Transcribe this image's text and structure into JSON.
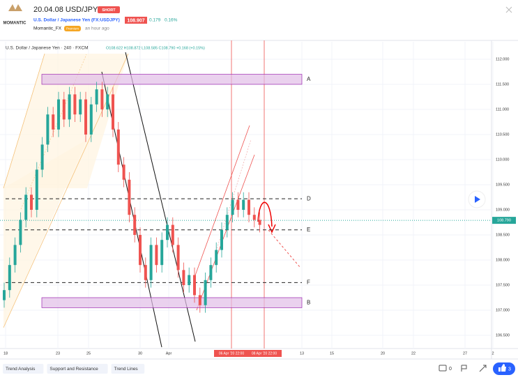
{
  "header": {
    "logo": "MOMANTIC",
    "title": "20.04.08 USD/JPY",
    "badge": "SHORT",
    "symbol": "U.S. Dollar / Japanese Yen (FX:USDJPY)",
    "price": "108.907",
    "change": "0.179",
    "change_pct": "0.16%",
    "author": "Momantic_FX",
    "author_badge": "Premium",
    "time": "an hour ago"
  },
  "legend": {
    "name": "U.S. Dollar / Japanese Yen · 240 · FXCM",
    "ohlc": "O108.622 H108.872 L108.585 C108.790 +0.168 (+0.15%)"
  },
  "chart_data": {
    "type": "candlestick",
    "ylim": [
      106.236,
      112.347
    ],
    "yticks": [
      {
        "value": 112,
        "label": "112.000"
      },
      {
        "value": 111.5,
        "label": "111.500"
      },
      {
        "value": 111,
        "label": "111.000"
      },
      {
        "value": 110.5,
        "label": "110.500"
      },
      {
        "value": 110,
        "label": "110.000"
      },
      {
        "value": 109.5,
        "label": "109.500"
      },
      {
        "value": 109,
        "label": "109.000"
      },
      {
        "value": 108.5,
        "label": "108.500"
      },
      {
        "value": 108,
        "label": "108.000"
      },
      {
        "value": 107.5,
        "label": "107.500"
      },
      {
        "value": 107,
        "label": "107.000"
      },
      {
        "value": 106.5,
        "label": "106.500"
      }
    ],
    "x_labels": [
      "18",
      "23",
      "25",
      "30",
      "Apr",
      "13",
      "15",
      "20",
      "22",
      "27",
      "2"
    ],
    "date_markers": [
      "06 Apr '20  22:00",
      "08 Apr '20  22:00"
    ],
    "last_price": {
      "value": 108.79,
      "label": "108.790"
    },
    "open": [
      107.2,
      107.4,
      107.9,
      108.3,
      108.8,
      109.3,
      109.0,
      109.8,
      110.3,
      110.9,
      110.6,
      111.2,
      110.8,
      111.3,
      110.9,
      111.2,
      110.5,
      111.1,
      111.4,
      111.0,
      111.3,
      110.6,
      109.9,
      109.6,
      108.9,
      108.5,
      107.9,
      107.6,
      108.3,
      107.9,
      108.4,
      108.7,
      108.3,
      107.8,
      107.5,
      107.7,
      107.3,
      107.1,
      107.6,
      107.9,
      108.2,
      108.6,
      108.9,
      109.2,
      109.0,
      109.2,
      108.9,
      108.8
    ],
    "high": [
      107.55,
      108.05,
      108.45,
      108.95,
      109.45,
      109.45,
      109.95,
      110.45,
      111.05,
      111.05,
      111.35,
      111.35,
      111.45,
      111.45,
      111.35,
      111.35,
      111.25,
      111.55,
      111.55,
      111.45,
      111.45,
      110.75,
      110.05,
      109.75,
      109.05,
      108.65,
      108.05,
      108.45,
      108.45,
      108.55,
      108.85,
      108.85,
      108.45,
      107.95,
      107.85,
      107.85,
      107.45,
      107.75,
      108.05,
      108.35,
      108.75,
      109.05,
      109.35,
      109.35,
      109.35,
      109.35,
      109.05,
      108.95
    ],
    "low": [
      107.05,
      107.25,
      107.75,
      108.15,
      108.65,
      108.85,
      108.85,
      109.65,
      110.15,
      110.45,
      110.45,
      110.65,
      110.65,
      110.75,
      110.75,
      110.35,
      110.35,
      110.95,
      110.85,
      110.85,
      110.45,
      109.75,
      109.45,
      108.75,
      108.35,
      107.75,
      107.45,
      107.45,
      107.75,
      107.75,
      108.25,
      108.15,
      107.65,
      107.35,
      107.35,
      107.15,
      106.95,
      106.95,
      107.45,
      107.75,
      108.05,
      108.45,
      108.75,
      108.85,
      108.85,
      108.75,
      108.65,
      108.55
    ],
    "close": [
      107.4,
      107.9,
      108.3,
      108.8,
      109.3,
      109.0,
      109.8,
      110.3,
      110.9,
      110.6,
      111.2,
      110.8,
      111.3,
      110.9,
      111.2,
      110.5,
      111.1,
      111.4,
      111.0,
      111.3,
      110.6,
      109.9,
      109.6,
      108.9,
      108.5,
      107.9,
      107.6,
      108.3,
      107.9,
      108.4,
      108.7,
      108.3,
      107.8,
      107.5,
      107.7,
      107.3,
      107.1,
      107.6,
      107.9,
      108.2,
      108.6,
      108.9,
      109.2,
      109.0,
      109.2,
      108.9,
      108.8,
      108.7
    ],
    "up_color": "#26a69a",
    "down_color": "#ef5350",
    "zones": [
      {
        "label": "A",
        "top": 111.7,
        "bottom": 111.5
      },
      {
        "label": "B",
        "top": 107.25,
        "bottom": 107.05
      }
    ],
    "levels": [
      {
        "label": "D",
        "price": 109.22
      },
      {
        "label": "E",
        "price": 108.6
      },
      {
        "label": "F",
        "price": 107.55
      }
    ]
  },
  "tags": [
    "Trend Analysis",
    "Support and Resistance",
    "Trend Lines"
  ],
  "comments": "0",
  "boosts": "3"
}
